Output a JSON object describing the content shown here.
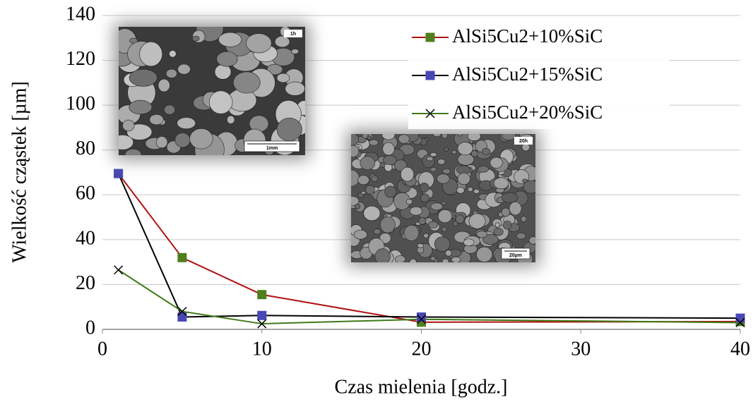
{
  "chart_data": {
    "type": "line",
    "x_label": "Czas mielenia [godz.]",
    "y_label": "Wielkość cząstek [µm]",
    "x": [
      1,
      5,
      10,
      20,
      40
    ],
    "series": [
      {
        "name": "AlSi5Cu2+10%SiC",
        "color": "#b01010",
        "marker": "square",
        "marker_color": "#4f7f1e",
        "values": [
          69.5,
          32,
          15.5,
          3.2,
          3.5
        ]
      },
      {
        "name": "AlSi5Cu2+15%SiC",
        "color": "#000000",
        "marker": "square",
        "marker_color": "#4848b4",
        "values": [
          69.5,
          5.5,
          6.2,
          5.5,
          5.0
        ]
      },
      {
        "name": "AlSi5Cu2+20%SiC",
        "color": "#3f7a17",
        "marker": "x",
        "marker_color": "#000000",
        "values": [
          26.5,
          8,
          2.5,
          4.5,
          3.0
        ]
      }
    ],
    "xlim": [
      0,
      40
    ],
    "xticks": [
      0,
      10,
      20,
      30,
      40
    ],
    "ylim": [
      0,
      140
    ],
    "yticks": [
      0,
      20,
      40,
      60,
      80,
      100,
      120,
      140
    ],
    "grid": true,
    "insets": [
      {
        "time": "1h",
        "scale": "1mm"
      },
      {
        "time": "20h",
        "scale": "20µm"
      }
    ]
  }
}
